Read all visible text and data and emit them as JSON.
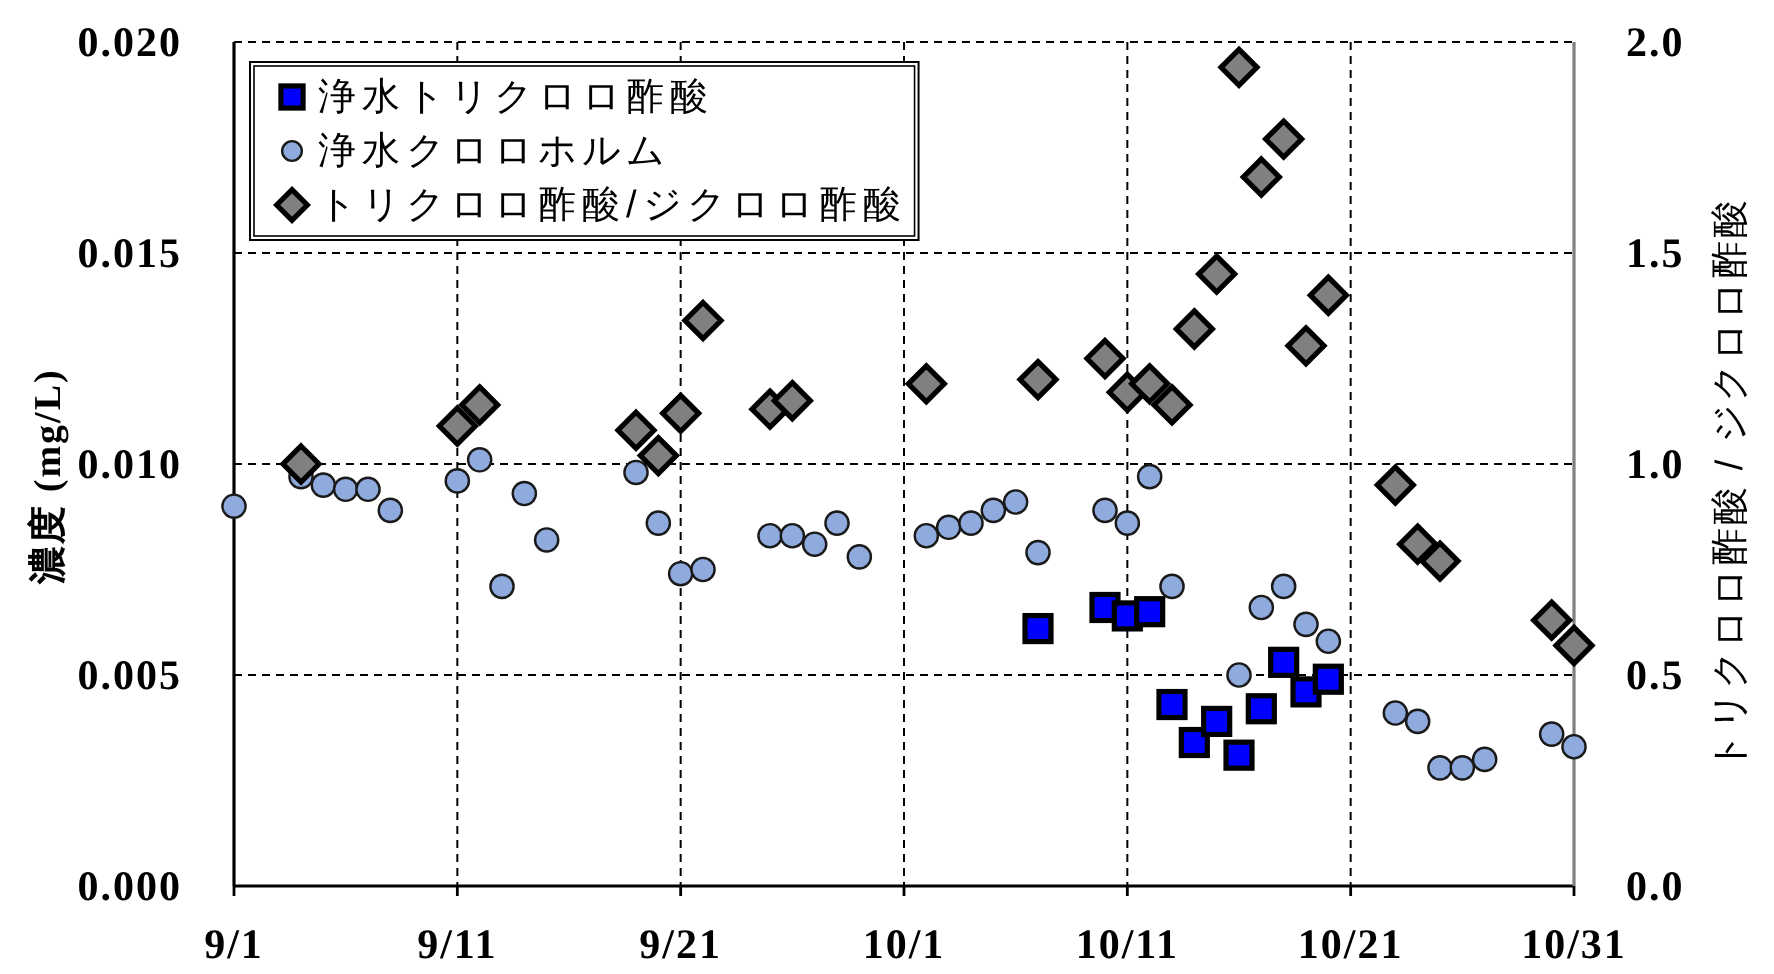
{
  "chart_data": {
    "type": "scatter",
    "ylabel": "濃度 (mg/L)",
    "y2label": "トリクロロ酢酸 / ジクロロ酢酸",
    "xlim": [
      "--09-01",
      "--10-31"
    ],
    "xticks": [
      {
        "value": "--09-01",
        "label": "9/1"
      },
      {
        "value": "--09-11",
        "label": "9/11"
      },
      {
        "value": "--09-21",
        "label": "9/21"
      },
      {
        "value": "--10-01",
        "label": "10/1"
      },
      {
        "value": "--10-11",
        "label": "10/11"
      },
      {
        "value": "--10-21",
        "label": "10/21"
      },
      {
        "value": "--10-31",
        "label": "10/31"
      }
    ],
    "ylim": [
      0,
      0.02
    ],
    "yticks": [
      {
        "value": 0,
        "label": "0.000"
      },
      {
        "value": 0.005,
        "label": "0.005"
      },
      {
        "value": 0.01,
        "label": "0.010"
      },
      {
        "value": 0.015,
        "label": "0.015"
      },
      {
        "value": 0.02,
        "label": "0.020"
      }
    ],
    "y2lim": [
      0,
      2
    ],
    "y2ticks": [
      {
        "value": 0,
        "label": "0.0"
      },
      0.5,
      {
        "value": 1,
        "label": "1.0"
      },
      1.5,
      {
        "value": 2,
        "label": "2.0"
      }
    ],
    "grid": true,
    "legend": "top left",
    "series": [
      {
        "name": "浄水トリクロロ酢酸",
        "color": "#0000ff",
        "marker": "square",
        "x": [
          "--10-07",
          "--10-10",
          "--10-11",
          "--10-12",
          "--10-13",
          "--10-14",
          "--10-15",
          "--10-16",
          "--10-17",
          "--10-18",
          "--10-19",
          "--10-20"
        ],
        "values": [
          0.0061,
          0.0066,
          0.0064,
          0.0065,
          0.0043,
          0.0034,
          0.0039,
          0.0031,
          0.0042,
          0.0053,
          0.0046,
          0.0049
        ]
      },
      {
        "name": "浄水クロロホルム",
        "color": "#8faadc",
        "marker": "circle",
        "x": [
          "--09-01",
          "--09-04",
          "--09-05",
          "--09-06",
          "--09-07",
          "--09-08",
          "--09-11",
          "--09-12",
          "--09-13",
          "--09-14",
          "--09-15",
          "--09-19",
          "--09-20",
          "--09-21",
          "--09-22",
          "--09-25",
          "--09-26",
          "--09-27",
          "--09-28",
          "--09-29",
          "--10-02",
          "--10-03",
          "--10-04",
          "--10-05",
          "--10-06",
          "--10-07",
          "--10-10",
          "--10-11",
          "--10-12",
          "--10-13",
          "--10-16",
          "--10-17",
          "--10-18",
          "--10-19",
          "--10-20",
          "--10-23",
          "--10-24",
          "--10-25",
          "--10-26",
          "--10-27",
          "--10-30",
          "--10-31"
        ],
        "values": [
          0.009,
          0.0097,
          0.0095,
          0.0094,
          0.0094,
          0.0089,
          0.0096,
          0.0101,
          0.0071,
          0.0093,
          0.0082,
          0.0098,
          0.0086,
          0.0074,
          0.0075,
          0.0083,
          0.0083,
          0.0081,
          0.0086,
          0.0078,
          0.0083,
          0.0085,
          0.0086,
          0.0089,
          0.0091,
          0.0079,
          0.0089,
          0.0086,
          0.0097,
          0.0071,
          0.005,
          0.0066,
          0.0071,
          0.0062,
          0.0058,
          0.0041,
          0.0039,
          0.0028,
          0.0028,
          0.003,
          0.0036,
          0.0033
        ]
      },
      {
        "name": "トリクロロ酢酸/ジクロロ酢酸",
        "color": "#808080",
        "marker": "diamond",
        "axis": "y2",
        "x": [
          "--09-04",
          "--09-11",
          "--09-12",
          "--09-19",
          "--09-20",
          "--09-21",
          "--09-22",
          "--09-25",
          "--09-26",
          "--10-02",
          "--10-07",
          "--10-10",
          "--10-11",
          "--10-12",
          "--10-13",
          "--10-14",
          "--10-15",
          "--10-16",
          "--10-17",
          "--10-18",
          "--10-19",
          "--10-20",
          "--10-23",
          "--10-24",
          "--10-25",
          "--10-30",
          "--10-31"
        ],
        "values": [
          1.0,
          1.09,
          1.14,
          1.08,
          1.02,
          1.12,
          1.34,
          1.13,
          1.15,
          1.19,
          1.2,
          1.25,
          1.17,
          1.19,
          1.14,
          1.32,
          1.45,
          1.94,
          1.68,
          1.77,
          1.28,
          1.4,
          0.95,
          0.81,
          0.77,
          0.63,
          0.57
        ]
      }
    ]
  }
}
